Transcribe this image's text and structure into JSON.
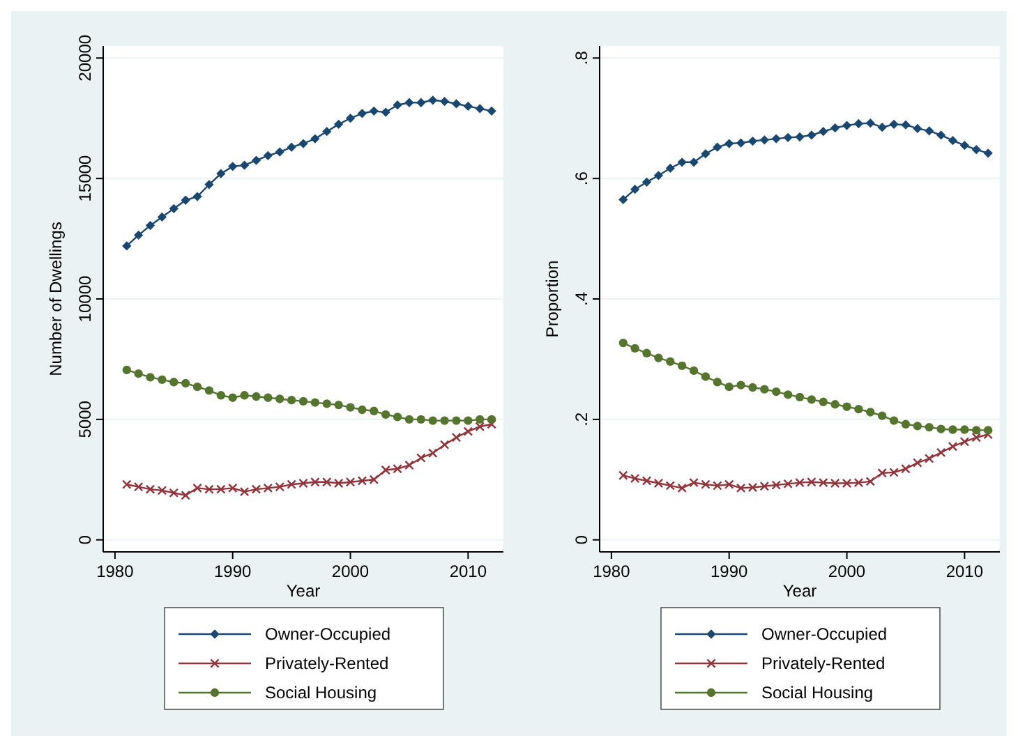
{
  "chart_data": [
    {
      "type": "line",
      "xlabel": "Year",
      "ylabel": "Number of Dwellings",
      "x": [
        1981,
        1982,
        1983,
        1984,
        1985,
        1986,
        1987,
        1988,
        1989,
        1990,
        1991,
        1992,
        1993,
        1994,
        1995,
        1996,
        1997,
        1998,
        1999,
        2000,
        2001,
        2002,
        2003,
        2004,
        2005,
        2006,
        2007,
        2008,
        2009,
        2010,
        2011,
        2012
      ],
      "xlim": [
        1979,
        2013
      ],
      "xticks": [
        1980,
        1990,
        2000,
        2010
      ],
      "ylim": [
        -500,
        20500
      ],
      "yticks": [
        0,
        5000,
        10000,
        15000,
        20000
      ],
      "grid": "y",
      "legend": "bottom",
      "line_style": "solid",
      "series": [
        {
          "name": "Owner-Occupied",
          "color": "#1a476f",
          "marker": "diamond",
          "values": [
            12200,
            12650,
            13050,
            13400,
            13750,
            14100,
            14250,
            14750,
            15200,
            15500,
            15550,
            15750,
            15950,
            16100,
            16300,
            16450,
            16650,
            16950,
            17250,
            17500,
            17700,
            17800,
            17750,
            18050,
            18150,
            18150,
            18250,
            18200,
            18100,
            18000,
            17900,
            17800
          ]
        },
        {
          "name": "Privately-Rented",
          "color": "#90353b",
          "marker": "cross",
          "values": [
            2300,
            2200,
            2100,
            2050,
            1950,
            1850,
            2150,
            2100,
            2100,
            2150,
            2000,
            2100,
            2150,
            2200,
            2300,
            2350,
            2400,
            2400,
            2350,
            2400,
            2450,
            2500,
            2900,
            2950,
            3100,
            3400,
            3600,
            3950,
            4250,
            4500,
            4700,
            4800
          ]
        },
        {
          "name": "Social Housing",
          "color": "#55752f",
          "marker": "circle",
          "values": [
            7050,
            6900,
            6750,
            6650,
            6550,
            6500,
            6350,
            6200,
            6000,
            5900,
            6000,
            5950,
            5900,
            5850,
            5800,
            5750,
            5700,
            5650,
            5600,
            5500,
            5400,
            5350,
            5200,
            5100,
            5000,
            5000,
            4950,
            4950,
            4950,
            4950,
            5000,
            5000
          ]
        }
      ]
    },
    {
      "type": "line",
      "xlabel": "Year",
      "ylabel": "Proportion",
      "x": [
        1981,
        1982,
        1983,
        1984,
        1985,
        1986,
        1987,
        1988,
        1989,
        1990,
        1991,
        1992,
        1993,
        1994,
        1995,
        1996,
        1997,
        1998,
        1999,
        2000,
        2001,
        2002,
        2003,
        2004,
        2005,
        2006,
        2007,
        2008,
        2009,
        2010,
        2011,
        2012
      ],
      "xlim": [
        1979,
        2013
      ],
      "xticks": [
        1980,
        1990,
        2000,
        2010
      ],
      "ylim": [
        -0.02,
        0.82
      ],
      "yticks": [
        {
          "value": 0,
          "label": "0"
        },
        {
          "value": 0.2,
          "label": ".2"
        },
        {
          "value": 0.4,
          "label": ".4"
        },
        {
          "value": 0.6,
          "label": ".6"
        },
        {
          "value": 0.8,
          "label": ".8"
        }
      ],
      "grid": "y",
      "legend": "bottom",
      "line_style": "solid",
      "series": [
        {
          "name": "Owner-Occupied",
          "color": "#1a476f",
          "marker": "diamond",
          "values": [
            0.565,
            0.582,
            0.594,
            0.605,
            0.617,
            0.627,
            0.627,
            0.641,
            0.652,
            0.658,
            0.659,
            0.662,
            0.664,
            0.666,
            0.668,
            0.669,
            0.672,
            0.678,
            0.684,
            0.688,
            0.691,
            0.692,
            0.685,
            0.69,
            0.689,
            0.683,
            0.679,
            0.672,
            0.663,
            0.655,
            0.648,
            0.642
          ]
        },
        {
          "name": "Privately-Rented",
          "color": "#90353b",
          "marker": "cross",
          "values": [
            0.107,
            0.102,
            0.098,
            0.094,
            0.09,
            0.086,
            0.095,
            0.092,
            0.09,
            0.092,
            0.086,
            0.087,
            0.089,
            0.091,
            0.093,
            0.095,
            0.096,
            0.095,
            0.094,
            0.094,
            0.095,
            0.097,
            0.111,
            0.112,
            0.118,
            0.128,
            0.135,
            0.145,
            0.155,
            0.163,
            0.17,
            0.175
          ]
        },
        {
          "name": "Social Housing",
          "color": "#55752f",
          "marker": "circle",
          "values": [
            0.327,
            0.318,
            0.31,
            0.302,
            0.296,
            0.289,
            0.281,
            0.271,
            0.262,
            0.254,
            0.257,
            0.253,
            0.25,
            0.246,
            0.241,
            0.237,
            0.233,
            0.229,
            0.225,
            0.221,
            0.217,
            0.212,
            0.206,
            0.198,
            0.192,
            0.189,
            0.187,
            0.184,
            0.183,
            0.183,
            0.182,
            0.182
          ]
        }
      ]
    }
  ]
}
